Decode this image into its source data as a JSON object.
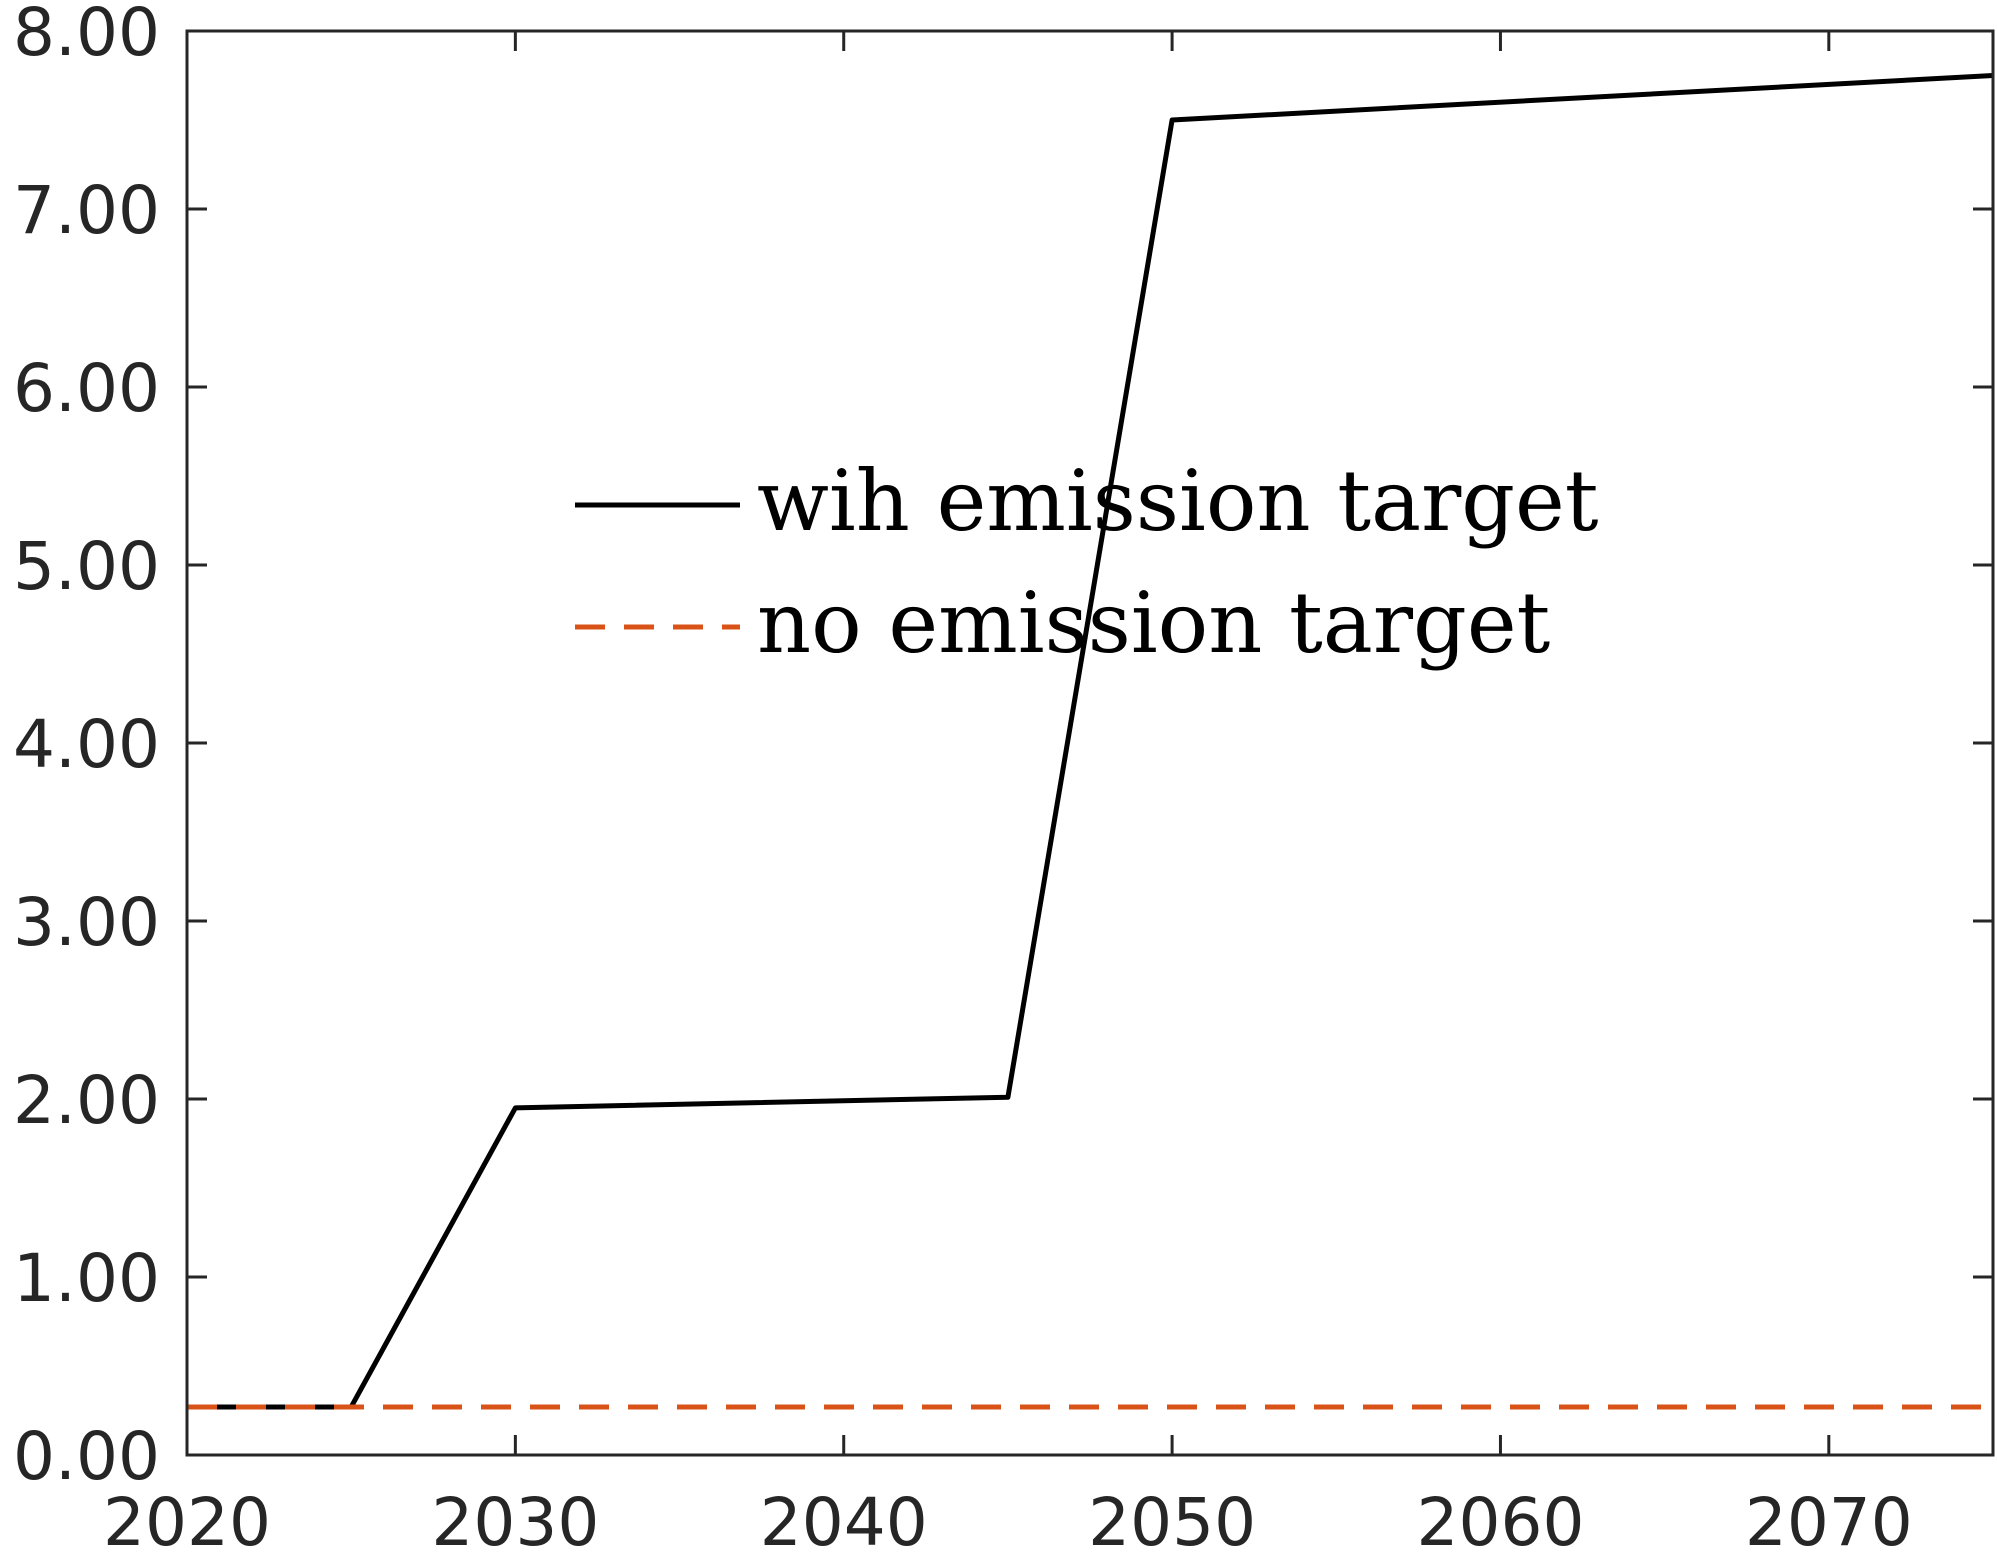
{
  "chart_data": {
    "type": "line",
    "title": "",
    "xlabel": "",
    "ylabel": "",
    "xlim": [
      2020,
      2075
    ],
    "ylim": [
      0,
      8
    ],
    "x_ticks": [
      2020,
      2030,
      2040,
      2050,
      2060,
      2070
    ],
    "y_ticks": [
      "0.00",
      "1.00",
      "2.00",
      "3.00",
      "4.00",
      "5.00",
      "6.00",
      "7.00",
      "8.00"
    ],
    "grid": false,
    "legend_position": "center",
    "series": [
      {
        "name": "wih emission target",
        "color": "#000000",
        "style": "solid",
        "x": [
          2020,
          2025,
          2030,
          2045,
          2050,
          2075
        ],
        "y": [
          0.27,
          0.27,
          1.95,
          2.01,
          7.5,
          7.75
        ]
      },
      {
        "name": "no emission target",
        "color": "#D95319",
        "style": "dashed",
        "x": [
          2020,
          2075
        ],
        "y": [
          0.27,
          0.27
        ]
      }
    ]
  }
}
